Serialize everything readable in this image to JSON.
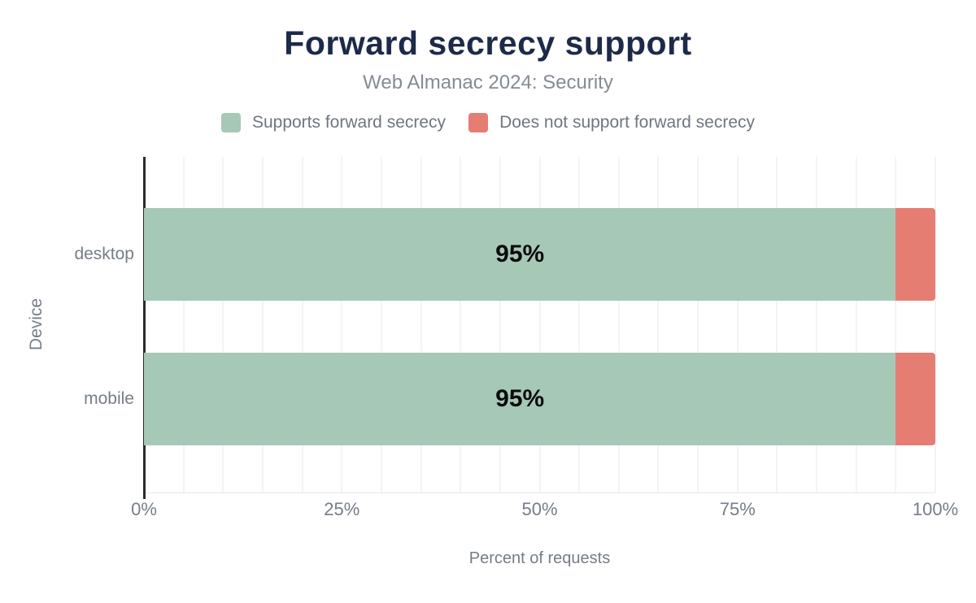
{
  "header": {
    "title": "Forward secrecy support",
    "subtitle": "Web Almanac 2024: Security"
  },
  "legend": {
    "items": [
      {
        "label": "Supports forward secrecy",
        "color": "#a6c8b7"
      },
      {
        "label": "Does not support forward secrecy",
        "color": "#e67d73"
      }
    ]
  },
  "chart_data": {
    "type": "bar",
    "orientation": "horizontal",
    "stacked": true,
    "title": "Forward secrecy support",
    "subtitle": "Web Almanac 2024: Security",
    "categories": [
      "desktop",
      "mobile"
    ],
    "series": [
      {
        "name": "Supports forward secrecy",
        "color": "#a6c8b7",
        "values": [
          95,
          95
        ]
      },
      {
        "name": "Does not support forward secrecy",
        "color": "#e67d73",
        "values": [
          5,
          5
        ]
      }
    ],
    "bar_labels": [
      "95%",
      "95%"
    ],
    "xlabel": "Percent of requests",
    "ylabel": "Device",
    "xlim": [
      0,
      100
    ],
    "x_ticks": [
      {
        "value": 0,
        "label": "0%"
      },
      {
        "value": 25,
        "label": "25%"
      },
      {
        "value": 50,
        "label": "50%"
      },
      {
        "value": 75,
        "label": "75%"
      },
      {
        "value": 100,
        "label": "100%"
      }
    ],
    "grid": "vertical minor gridlines every 5%",
    "legend_position": "top"
  },
  "colors": {
    "title": "#1d2a49",
    "subtitle": "#848b95",
    "legend_text": "#6f7680",
    "axis_text": "#767d87",
    "bar_value_text": "#0a0a0a",
    "axis_line": "#2b2b2b",
    "baseline": "#e8e8ea",
    "gridline": "#f4f4f6"
  }
}
